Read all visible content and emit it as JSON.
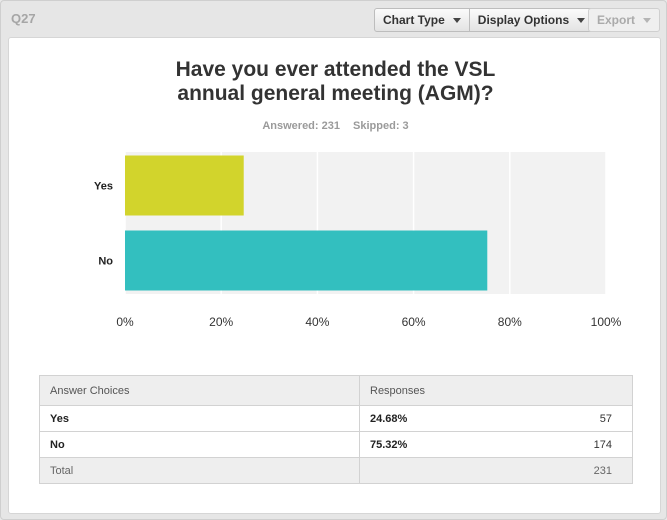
{
  "question_number": "Q27",
  "toolbar": {
    "chart_type": "Chart Type",
    "display_options": "Display Options",
    "export": "Export"
  },
  "stats": {
    "answered": "Answered: 231",
    "skipped": "Skipped: 3"
  },
  "colors": {
    "yes_bar": "#d2d42c",
    "no_bar": "#33bfbf",
    "plot_bg": "#f2f2f2"
  },
  "chart_data": {
    "type": "bar",
    "orientation": "horizontal",
    "title": "Have you ever attended the VSL annual general meeting (AGM)?",
    "categories": [
      "Yes",
      "No"
    ],
    "values": [
      24.68,
      75.32
    ],
    "xlim": [
      0,
      100
    ],
    "xticks": [
      "0%",
      "20%",
      "40%",
      "60%",
      "80%",
      "100%"
    ],
    "grid": true
  },
  "table": {
    "headers": [
      "Answer Choices",
      "Responses"
    ],
    "rows": [
      {
        "choice": "Yes",
        "percent": "24.68%",
        "count": "57"
      },
      {
        "choice": "No",
        "percent": "75.32%",
        "count": "174"
      }
    ],
    "total_label": "Total",
    "total_count": "231"
  }
}
